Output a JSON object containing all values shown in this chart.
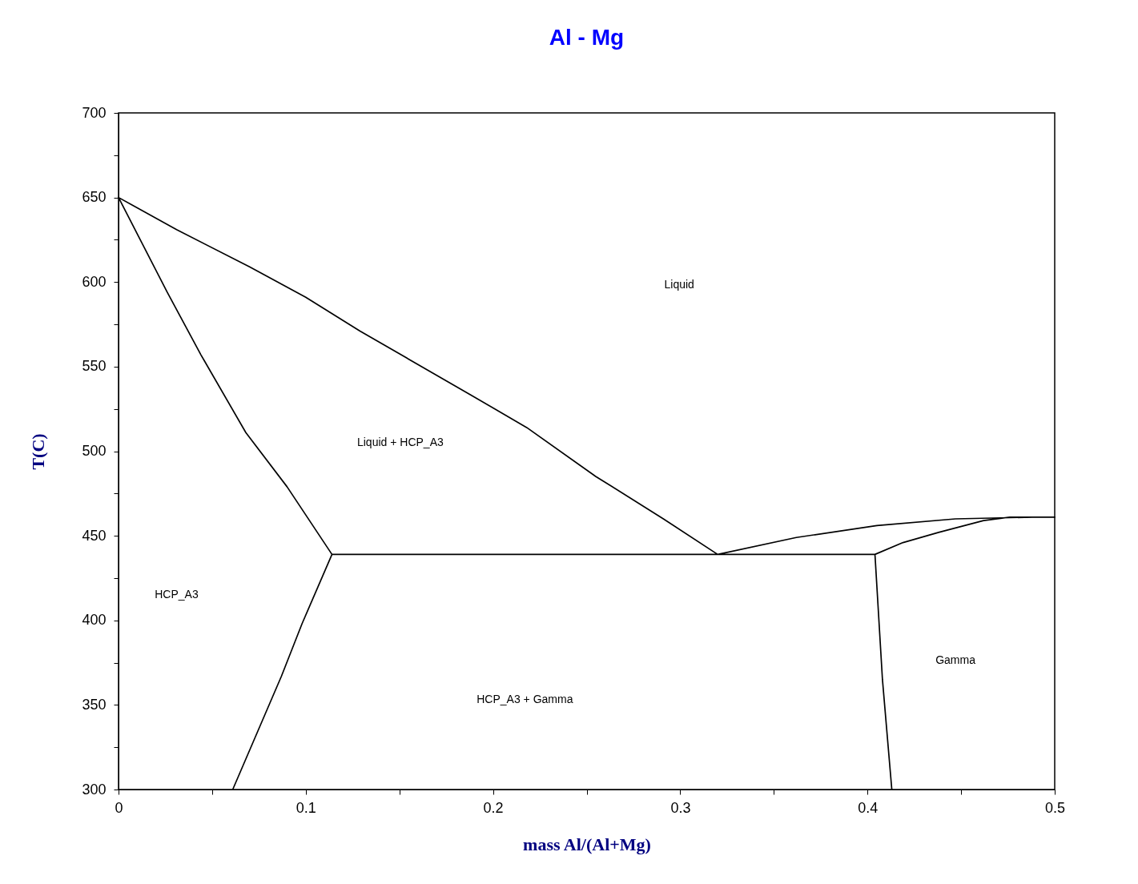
{
  "chart_data": {
    "type": "line",
    "title": "Al - Mg",
    "xlabel": "mass Al/(Al+Mg)",
    "ylabel": "T(C)",
    "xlim": [
      0,
      0.5
    ],
    "ylim": [
      300,
      700
    ],
    "xticks": [
      0,
      {
        "value": 0.05,
        "label": null
      },
      0.1,
      {
        "value": 0.15,
        "label": null
      },
      0.2,
      {
        "value": 0.25,
        "label": null
      },
      0.3,
      {
        "value": 0.35,
        "label": null
      },
      0.4,
      {
        "value": 0.45,
        "label": null
      },
      0.5
    ],
    "yticks": [
      300,
      {
        "value": 325,
        "label": null
      },
      350,
      {
        "value": 375,
        "label": null
      },
      400,
      {
        "value": 425,
        "label": null
      },
      450,
      {
        "value": 475,
        "label": null
      },
      500,
      {
        "value": 525,
        "label": null
      },
      550,
      {
        "value": 575,
        "label": null
      },
      600,
      {
        "value": 625,
        "label": null
      },
      650,
      {
        "value": 675,
        "label": null
      },
      700
    ],
    "line_style": "solid",
    "series": [
      {
        "color": "#000000",
        "x": [
          0,
          0.031,
          0.07,
          0.1,
          0.129,
          0.187,
          0.218,
          0.255,
          0.291,
          0.32,
          0.362,
          0.405,
          0.447,
          0.488,
          0.5,
          0.476,
          0.462,
          0.438,
          0.419,
          0.404,
          0.408,
          0.413,
          null,
          0.061,
          0.087,
          0.098,
          0.114,
          0.09,
          0.068,
          0.044,
          0.026,
          0,
          null,
          0.114,
          0.404
        ],
        "values": [
          650,
          631,
          609,
          591,
          571,
          534,
          514,
          485,
          460,
          439,
          449,
          456,
          460,
          461,
          461,
          461,
          459,
          452,
          446,
          439,
          365,
          300,
          null,
          300,
          367,
          398,
          439,
          479,
          511,
          557,
          594,
          650,
          null,
          439,
          439
        ]
      }
    ],
    "annotations": [
      "Liquid",
      "Liquid + HCP_A3",
      "HCP_A3",
      "HCP_A3 + Gamma",
      "Gamma"
    ]
  }
}
